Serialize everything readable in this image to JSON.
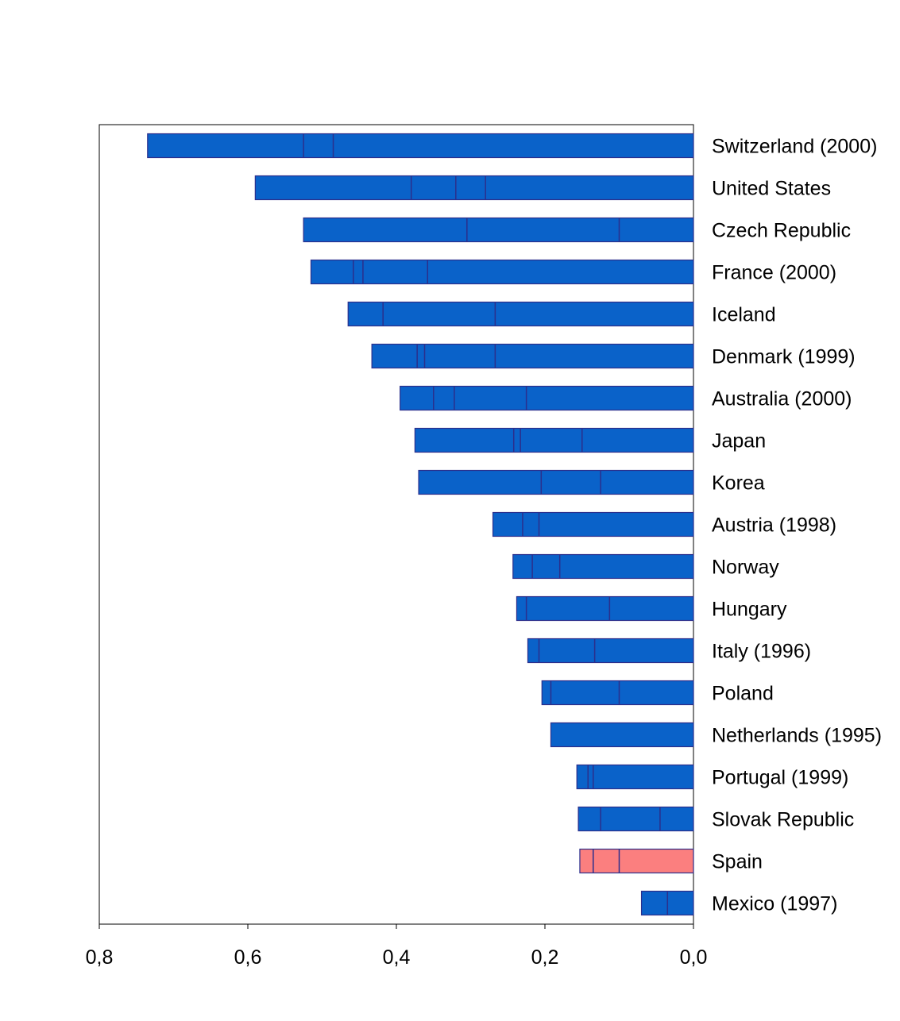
{
  "chart_data": {
    "type": "bar",
    "orientation": "horizontal",
    "x_axis_reversed": true,
    "xlim": [
      0.8,
      0.0
    ],
    "x_ticks": [
      "0,8",
      "0,6",
      "0,4",
      "0,2",
      "0,0"
    ],
    "x_tick_values": [
      0.8,
      0.6,
      0.4,
      0.2,
      0.0
    ],
    "label_position": "right",
    "colors": {
      "default": "#0a62c9",
      "highlight": "#fb7f7f",
      "stroke": "#2b2f8c"
    },
    "categories": [
      "Switzerland (2000)",
      "United States",
      "Czech Republic",
      "France (2000)",
      "Iceland",
      "Denmark (1999)",
      "Australia (2000)",
      "Japan",
      "Korea",
      "Austria (1998)",
      "Norway",
      "Hungary",
      "Italy (1996)",
      "Poland",
      "Netherlands (1995)",
      "Portugal (1999)",
      "Slovak Republic",
      "Spain",
      "Mexico (1997)"
    ],
    "values": [
      0.735,
      0.59,
      0.525,
      0.515,
      0.465,
      0.433,
      0.395,
      0.375,
      0.37,
      0.27,
      0.243,
      0.238,
      0.223,
      0.204,
      0.192,
      0.157,
      0.155,
      0.153,
      0.07
    ],
    "segment_dividers": [
      [
        0.525,
        0.485
      ],
      [
        0.38,
        0.32,
        0.28
      ],
      [
        0.305,
        0.1
      ],
      [
        0.458,
        0.445,
        0.358
      ],
      [
        0.418,
        0.267
      ],
      [
        0.372,
        0.362,
        0.267
      ],
      [
        0.35,
        0.322,
        0.225
      ],
      [
        0.242,
        0.233,
        0.15
      ],
      [
        0.205,
        0.125
      ],
      [
        0.23,
        0.208
      ],
      [
        0.217,
        0.18
      ],
      [
        0.225,
        0.113
      ],
      [
        0.208,
        0.133
      ],
      [
        0.192,
        0.1
      ],
      [],
      [
        0.142,
        0.135
      ],
      [
        0.125,
        0.045
      ],
      [
        0.135,
        0.1
      ],
      [
        0.035
      ]
    ],
    "highlight": [
      "Spain"
    ]
  }
}
